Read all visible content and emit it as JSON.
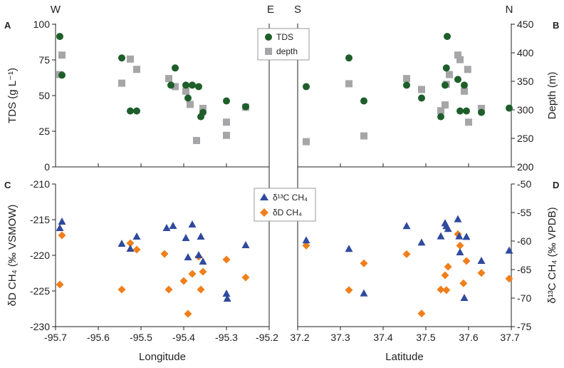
{
  "chart_data": {
    "type": "scatter",
    "compass": {
      "left_w": "W",
      "left_e": "E",
      "right_s": "S",
      "right_n": "N"
    },
    "panels": {
      "A": "A",
      "B": "B",
      "C": "C",
      "D": "D"
    },
    "top": {
      "left_ylabel": "TDS (g L⁻¹)",
      "right_ylabel": "Depth (m)",
      "left_yticks": [
        "100",
        "75",
        "50",
        "25",
        "0"
      ],
      "right_yticks": [
        "450",
        "400",
        "350",
        "300",
        "250",
        "200"
      ],
      "left_ylim": [
        0,
        100
      ],
      "right_ylim": [
        200,
        450
      ],
      "legend": [
        "TDS",
        "depth"
      ]
    },
    "bottom": {
      "left_ylabel": "δD CH₄ (‰ VSMOW)",
      "right_ylabel": "δ¹³C CH₄ (‰ VPDB)",
      "left_yticks": [
        "-210",
        "-215",
        "-220",
        "-225",
        "-230"
      ],
      "right_yticks": [
        "-50",
        "-55",
        "-60",
        "-65",
        "-70",
        "-75"
      ],
      "left_ylim": [
        -230,
        -210
      ],
      "right_ylim": [
        -75,
        -50
      ],
      "legend": [
        "δ¹³C CH₄",
        "δD CH₄"
      ]
    },
    "x_left": {
      "label": "Longitude",
      "ticks": [
        "-95.7",
        "-95.6",
        "-95.5",
        "-95.4",
        "-95.3",
        "-95.2"
      ],
      "xlim": [
        -95.7,
        -95.2
      ]
    },
    "x_right": {
      "label": "Latitude",
      "ticks": [
        "37.2",
        "37.3",
        "37.4",
        "37.5",
        "37.6",
        "37.7"
      ],
      "xlim": [
        37.2,
        37.7
      ]
    },
    "colors": {
      "tds": "#1e5e2a",
      "depth": "#a6a6a8",
      "d13c": "#2f4a9e",
      "dd": "#f07f1b"
    },
    "series": {
      "A_tds": [
        [
          -95.69,
          91
        ],
        [
          -95.685,
          64
        ],
        [
          -95.545,
          76
        ],
        [
          -95.525,
          39
        ],
        [
          -95.51,
          39
        ],
        [
          -95.43,
          57
        ],
        [
          -95.42,
          69
        ],
        [
          -95.395,
          57
        ],
        [
          -95.39,
          48
        ],
        [
          -95.38,
          57
        ],
        [
          -95.365,
          56
        ],
        [
          -95.36,
          35
        ],
        [
          -95.355,
          38
        ],
        [
          -95.3,
          46
        ],
        [
          -95.255,
          42
        ]
      ],
      "A_depth": [
        [
          -95.69,
          361
        ],
        [
          -95.685,
          395
        ],
        [
          -95.545,
          346
        ],
        [
          -95.525,
          388
        ],
        [
          -95.51,
          370
        ],
        [
          -95.435,
          354
        ],
        [
          -95.42,
          340
        ],
        [
          -95.395,
          332
        ],
        [
          -95.385,
          309
        ],
        [
          -95.37,
          246
        ],
        [
          -95.355,
          302
        ],
        [
          -95.3,
          278
        ],
        [
          -95.3,
          255
        ],
        [
          -95.255,
          304
        ]
      ],
      "B_tds": [
        [
          37.22,
          56
        ],
        [
          37.32,
          76
        ],
        [
          37.355,
          46
        ],
        [
          37.455,
          57
        ],
        [
          37.49,
          48
        ],
        [
          37.535,
          35
        ],
        [
          37.545,
          57
        ],
        [
          37.548,
          69
        ],
        [
          37.55,
          91
        ],
        [
          37.575,
          61
        ],
        [
          37.58,
          39
        ],
        [
          37.59,
          57
        ],
        [
          37.595,
          39
        ],
        [
          37.63,
          38
        ],
        [
          37.695,
          41
        ]
      ],
      "B_depth": [
        [
          37.22,
          244
        ],
        [
          37.32,
          345
        ],
        [
          37.355,
          254
        ],
        [
          37.455,
          354
        ],
        [
          37.49,
          335
        ],
        [
          37.535,
          298
        ],
        [
          37.545,
          308
        ],
        [
          37.548,
          344
        ],
        [
          37.555,
          361
        ],
        [
          37.575,
          395
        ],
        [
          37.58,
          387
        ],
        [
          37.59,
          332
        ],
        [
          37.598,
          370
        ],
        [
          37.6,
          278
        ],
        [
          37.63,
          302
        ]
      ],
      "C_dd": [
        [
          -95.69,
          -224.1
        ],
        [
          -95.685,
          -217.2
        ],
        [
          -95.545,
          -224.8
        ],
        [
          -95.525,
          -218.3
        ],
        [
          -95.51,
          -219.2
        ],
        [
          -95.445,
          -219.8
        ],
        [
          -95.435,
          -224.8
        ],
        [
          -95.4,
          -223.6
        ],
        [
          -95.39,
          -228.2
        ],
        [
          -95.38,
          -222.6
        ],
        [
          -95.365,
          -220.2
        ],
        [
          -95.36,
          -224.8
        ],
        [
          -95.355,
          -222.3
        ],
        [
          -95.3,
          -220.6
        ],
        [
          -95.255,
          -223.1
        ]
      ],
      "C_d13c": [
        [
          -95.69,
          -216.2
        ],
        [
          -95.685,
          -215.3
        ],
        [
          -95.545,
          -218.4
        ],
        [
          -95.525,
          -219.1
        ],
        [
          -95.51,
          -217.4
        ],
        [
          -95.44,
          -216.2
        ],
        [
          -95.425,
          -215.9
        ],
        [
          -95.395,
          -217.6
        ],
        [
          -95.39,
          -220.3
        ],
        [
          -95.38,
          -215.7
        ],
        [
          -95.365,
          -220.0
        ],
        [
          -95.36,
          -217.4
        ],
        [
          -95.355,
          -220.9
        ],
        [
          -95.3,
          -225.4
        ],
        [
          -95.298,
          -226.1
        ],
        [
          -95.255,
          -218.6
        ]
      ],
      "D_d13c": [
        [
          37.22,
          -59.9
        ],
        [
          37.32,
          -61.4
        ],
        [
          37.355,
          -69.2
        ],
        [
          37.455,
          -57.4
        ],
        [
          37.49,
          -60.3
        ],
        [
          37.535,
          -59.2
        ],
        [
          37.545,
          -56.9
        ],
        [
          37.548,
          -57.4
        ],
        [
          37.552,
          -57.9
        ],
        [
          37.575,
          -56.2
        ],
        [
          37.578,
          -59.2
        ],
        [
          37.58,
          -62.0
        ],
        [
          37.59,
          -70.0
        ],
        [
          37.595,
          -59.3
        ],
        [
          37.63,
          -63.5
        ],
        [
          37.695,
          -61.7
        ]
      ],
      "D_dd": [
        [
          37.22,
          -60.8
        ],
        [
          37.32,
          -68.6
        ],
        [
          37.355,
          -63.9
        ],
        [
          37.455,
          -62.3
        ],
        [
          37.49,
          -72.7
        ],
        [
          37.535,
          -68.5
        ],
        [
          37.545,
          -66.0
        ],
        [
          37.548,
          -68.6
        ],
        [
          37.552,
          -64.5
        ],
        [
          37.575,
          -58.8
        ],
        [
          37.58,
          -60.8
        ],
        [
          37.588,
          -67.4
        ],
        [
          37.595,
          -63.5
        ],
        [
          37.63,
          -65.6
        ],
        [
          37.695,
          -66.6
        ]
      ]
    }
  }
}
